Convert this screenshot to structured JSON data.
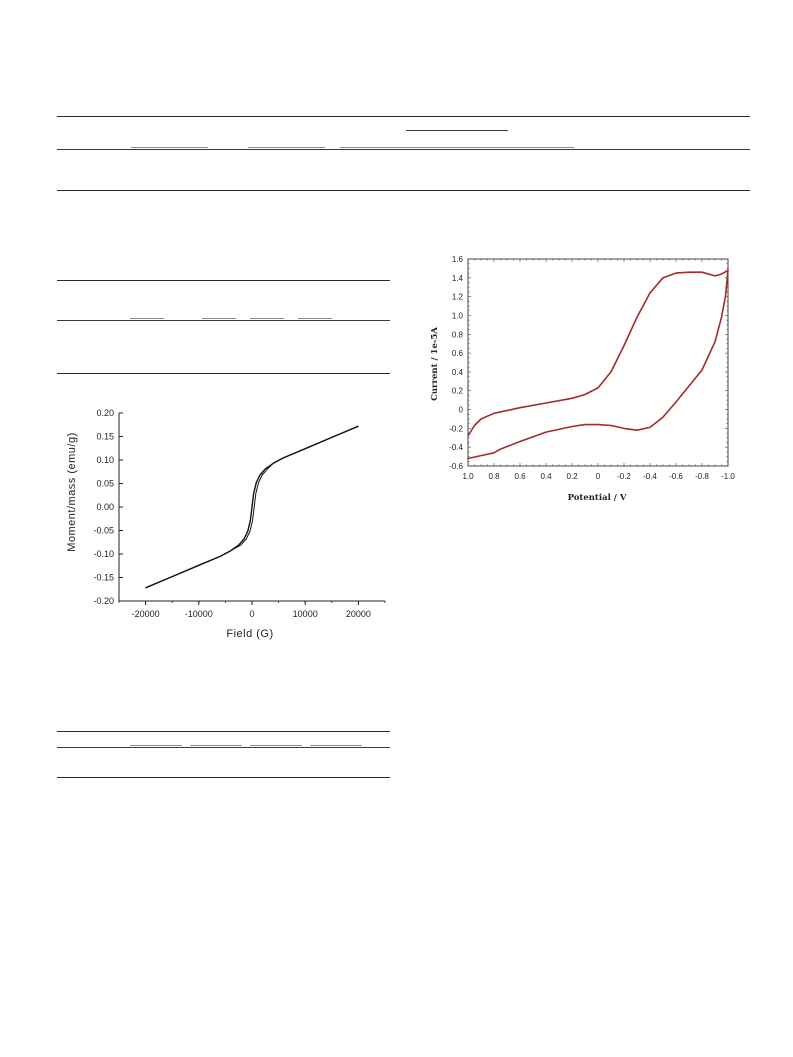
{
  "chart_data": [
    {
      "type": "line",
      "title": "",
      "xlabel": "Field (G)",
      "ylabel": "Moment/mass (emu/g)",
      "xlim": [
        -25000,
        25000
      ],
      "ylim": [
        -0.2,
        0.2
      ],
      "xticks": [
        "-20000",
        "-10000",
        "0",
        "10000",
        "20000"
      ],
      "yticks": [
        "0.20",
        "0.15",
        "0.10",
        "0.05",
        "0.00",
        "-0.05",
        "-0.10",
        "-0.15",
        "-0.20"
      ],
      "grid": false,
      "series": [
        {
          "color": "#111111",
          "x": [
            -20000,
            -15000,
            -10000,
            -6000,
            -4000,
            -2500,
            -1500,
            -800,
            -300,
            0,
            300,
            800,
            1500,
            2500,
            4000,
            6000,
            10000,
            15000,
            20000
          ],
          "y": [
            -0.172,
            -0.148,
            -0.124,
            -0.105,
            -0.093,
            -0.081,
            -0.068,
            -0.052,
            -0.028,
            0.0,
            0.028,
            0.052,
            0.068,
            0.081,
            0.093,
            0.105,
            0.124,
            0.148,
            0.172
          ]
        }
      ]
    },
    {
      "type": "line",
      "title": "",
      "xlabel": "Potential / V",
      "ylabel": "Current / 1e-5A",
      "xlim": [
        1.0,
        -1.0
      ],
      "ylim": [
        -0.6,
        1.6
      ],
      "xticks": [
        "1.0",
        "0.8",
        "0.6",
        "0.4",
        "0.2",
        "0",
        "-0.2",
        "-0.4",
        "-0.6",
        "-0.8",
        "-1.0"
      ],
      "yticks": [
        "1.6",
        "1.4",
        "1.2",
        "1.0",
        "0.8",
        "0.6",
        "0.4",
        "0.2",
        "0",
        "-0.2",
        "-0.4",
        "-0.6"
      ],
      "grid": false,
      "series": [
        {
          "color": "#a52a2a",
          "x": [
            1.0,
            0.95,
            0.9,
            0.8,
            0.6,
            0.4,
            0.2,
            0.1,
            0.0,
            -0.1,
            -0.2,
            -0.3,
            -0.4,
            -0.5,
            -0.6,
            -0.7,
            -0.8,
            -0.9,
            -0.95,
            -1.0,
            -0.98,
            -0.95,
            -0.9,
            -0.8,
            -0.7,
            -0.6,
            -0.5,
            -0.4,
            -0.3,
            -0.2,
            -0.1,
            0.0,
            0.1,
            0.2,
            0.4,
            0.6,
            0.75,
            0.8,
            0.9,
            1.0
          ],
          "y": [
            -0.28,
            -0.17,
            -0.1,
            -0.04,
            0.02,
            0.07,
            0.12,
            0.16,
            0.23,
            0.4,
            0.68,
            0.98,
            1.24,
            1.4,
            1.45,
            1.46,
            1.46,
            1.42,
            1.44,
            1.48,
            1.2,
            0.98,
            0.72,
            0.42,
            0.25,
            0.08,
            -0.08,
            -0.19,
            -0.22,
            -0.2,
            -0.17,
            -0.16,
            -0.16,
            -0.18,
            -0.24,
            -0.34,
            -0.42,
            -0.46,
            -0.49,
            -0.52
          ]
        }
      ]
    }
  ]
}
